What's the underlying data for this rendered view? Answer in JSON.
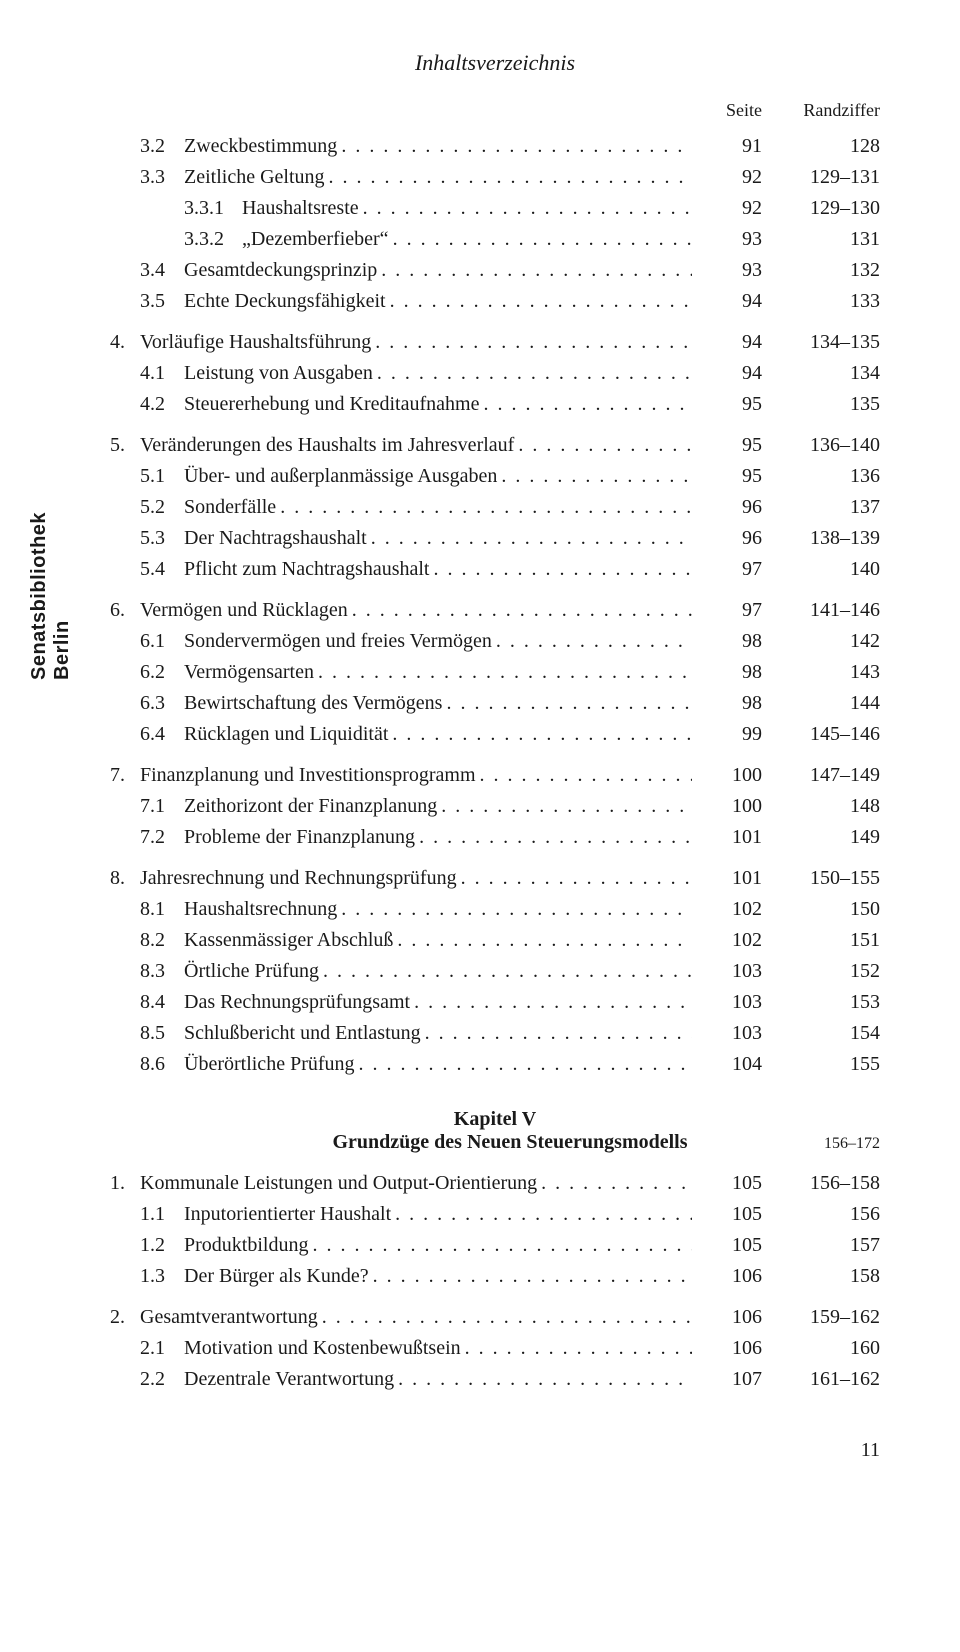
{
  "header": "Inhaltsverzeichnis",
  "col_seite": "Seite",
  "col_rand": "Randziffer",
  "sidebar": "Senatsbibliothek\nBerlin",
  "sidebar_line1": "Senatsbibliothek",
  "sidebar_line2": "Berlin",
  "chapter": {
    "label": "Kapitel V",
    "title": "Grundzüge des Neuen Steuerungsmodells",
    "rand": "156–172"
  },
  "rows": [
    {
      "lvl": 2,
      "num": "3.2",
      "title": "Zweckbestimmung",
      "seite": "91",
      "rand": "128"
    },
    {
      "lvl": 2,
      "num": "3.3",
      "title": "Zeitliche Geltung",
      "seite": "92",
      "rand": "129–131"
    },
    {
      "lvl": 3,
      "num": "3.3.1",
      "title": "Haushaltsreste",
      "seite": "92",
      "rand": "129–130"
    },
    {
      "lvl": 3,
      "num": "3.3.2",
      "title": "„Dezemberfieber“",
      "seite": "93",
      "rand": "131"
    },
    {
      "lvl": 2,
      "num": "3.4",
      "title": "Gesamtdeckungsprinzip",
      "seite": "93",
      "rand": "132"
    },
    {
      "lvl": 2,
      "num": "3.5",
      "title": "Echte Deckungsfähigkeit",
      "seite": "94",
      "rand": "133"
    },
    {
      "lvl": 1,
      "num": "4.",
      "title": "Vorläufige Haushaltsführung",
      "seite": "94",
      "rand": "134–135",
      "gapBefore": true
    },
    {
      "lvl": 2,
      "num": "4.1",
      "title": "Leistung von Ausgaben",
      "seite": "94",
      "rand": "134"
    },
    {
      "lvl": 2,
      "num": "4.2",
      "title": "Steuererhebung und Kreditaufnahme",
      "seite": "95",
      "rand": "135"
    },
    {
      "lvl": 1,
      "num": "5.",
      "title": "Veränderungen des Haushalts im Jahresverlauf",
      "seite": "95",
      "rand": "136–140",
      "gapBefore": true
    },
    {
      "lvl": 2,
      "num": "5.1",
      "title": "Über- und außerplanmässige Ausgaben",
      "seite": "95",
      "rand": "136"
    },
    {
      "lvl": 2,
      "num": "5.2",
      "title": "Sonderfälle",
      "seite": "96",
      "rand": "137"
    },
    {
      "lvl": 2,
      "num": "5.3",
      "title": "Der Nachtragshaushalt",
      "seite": "96",
      "rand": "138–139"
    },
    {
      "lvl": 2,
      "num": "5.4",
      "title": "Pflicht zum Nachtragshaushalt",
      "seite": "97",
      "rand": "140"
    },
    {
      "lvl": 1,
      "num": "6.",
      "title": "Vermögen und Rücklagen",
      "seite": "97",
      "rand": "141–146",
      "gapBefore": true
    },
    {
      "lvl": 2,
      "num": "6.1",
      "title": "Sondervermögen und freies Vermögen",
      "seite": "98",
      "rand": "142"
    },
    {
      "lvl": 2,
      "num": "6.2",
      "title": "Vermögensarten",
      "seite": "98",
      "rand": "143"
    },
    {
      "lvl": 2,
      "num": "6.3",
      "title": "Bewirtschaftung des Vermögens",
      "seite": "98",
      "rand": "144"
    },
    {
      "lvl": 2,
      "num": "6.4",
      "title": "Rücklagen und Liquidität",
      "seite": "99",
      "rand": "145–146"
    },
    {
      "lvl": 1,
      "num": "7.",
      "title": "Finanzplanung und Investitionsprogramm",
      "seite": "100",
      "rand": "147–149",
      "gapBefore": true
    },
    {
      "lvl": 2,
      "num": "7.1",
      "title": "Zeithorizont der Finanzplanung",
      "seite": "100",
      "rand": "148"
    },
    {
      "lvl": 2,
      "num": "7.2",
      "title": "Probleme der Finanzplanung",
      "seite": "101",
      "rand": "149"
    },
    {
      "lvl": 1,
      "num": "8.",
      "title": "Jahresrechnung und Rechnungsprüfung",
      "seite": "101",
      "rand": "150–155",
      "gapBefore": true
    },
    {
      "lvl": 2,
      "num": "8.1",
      "title": "Haushaltsrechnung",
      "seite": "102",
      "rand": "150"
    },
    {
      "lvl": 2,
      "num": "8.2",
      "title": "Kassenmässiger Abschluß",
      "seite": "102",
      "rand": "151"
    },
    {
      "lvl": 2,
      "num": "8.3",
      "title": "Örtliche Prüfung",
      "seite": "103",
      "rand": "152"
    },
    {
      "lvl": 2,
      "num": "8.4",
      "title": "Das Rechnungsprüfungsamt",
      "seite": "103",
      "rand": "153"
    },
    {
      "lvl": 2,
      "num": "8.5",
      "title": "Schlußbericht und Entlastung",
      "seite": "103",
      "rand": "154"
    },
    {
      "lvl": 2,
      "num": "8.6",
      "title": "Überörtliche Prüfung",
      "seite": "104",
      "rand": "155"
    }
  ],
  "rows2": [
    {
      "lvl": 1,
      "num": "1.",
      "title": "Kommunale Leistungen und Output-Orientierung",
      "seite": "105",
      "rand": "156–158"
    },
    {
      "lvl": 2,
      "num": "1.1",
      "title": "Inputorientierter Haushalt",
      "seite": "105",
      "rand": "156"
    },
    {
      "lvl": 2,
      "num": "1.2",
      "title": "Produktbildung",
      "seite": "105",
      "rand": "157"
    },
    {
      "lvl": 2,
      "num": "1.3",
      "title": "Der Bürger als Kunde?",
      "seite": "106",
      "rand": "158"
    },
    {
      "lvl": 1,
      "num": "2.",
      "title": "Gesamtverantwortung",
      "seite": "106",
      "rand": "159–162",
      "gapBefore": true
    },
    {
      "lvl": 2,
      "num": "2.1",
      "title": "Motivation und Kostenbewußtsein",
      "seite": "106",
      "rand": "160"
    },
    {
      "lvl": 2,
      "num": "2.2",
      "title": "Dezentrale Verantwortung",
      "seite": "107",
      "rand": "161–162"
    }
  ],
  "page_number": "11"
}
